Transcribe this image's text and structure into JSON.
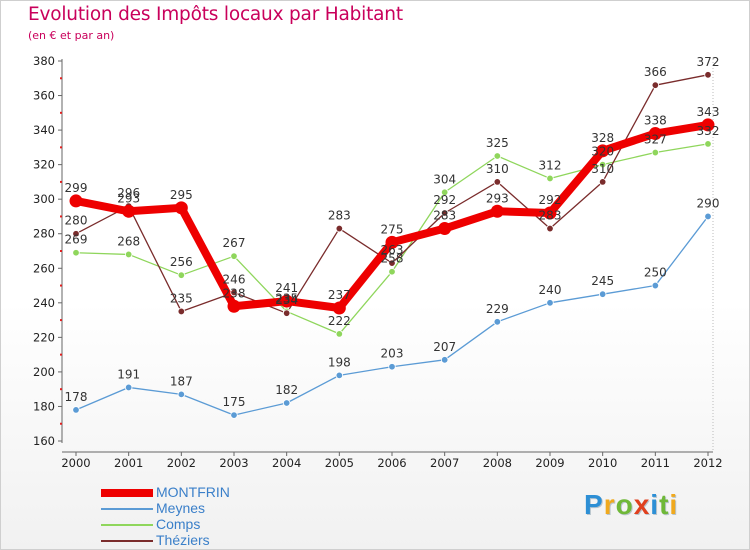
{
  "header": {
    "title": "Evolution des Impôts locaux par Habitant",
    "subtitle": "(en € et par an)"
  },
  "logo": {
    "letters": [
      "P",
      "r",
      "o",
      "x",
      "i",
      "t",
      "i"
    ],
    "colors": [
      "#2d8fd5",
      "#f0a91e",
      "#6fb838",
      "#e0401e",
      "#2d8fd5",
      "#6fb838",
      "#f0a91e"
    ]
  },
  "chart_data": {
    "type": "line",
    "title": "Evolution des Impôts locaux par Habitant",
    "ylabel": "(en € et par an)",
    "xlabel": "",
    "x": [
      "2000",
      "2001",
      "2002",
      "2003",
      "2004",
      "2005",
      "2006",
      "2007",
      "2008",
      "2009",
      "2010",
      "2011",
      "2012"
    ],
    "ylim": [
      160,
      380
    ],
    "yticks": [
      160,
      180,
      200,
      220,
      240,
      260,
      280,
      300,
      320,
      340,
      360,
      380
    ],
    "grid": false,
    "legend_position": "bottom-left",
    "series": [
      {
        "name": "MONTFRIN",
        "color": "#ee0000",
        "emphasis": true,
        "values": [
          299,
          293,
          295,
          238,
          241,
          237,
          275,
          283,
          293,
          292,
          328,
          338,
          343
        ],
        "labels": [
          "299",
          "293",
          "295",
          "238",
          "241",
          "237",
          "275",
          "283",
          "293",
          "292",
          "328",
          "338",
          "343"
        ]
      },
      {
        "name": "Meynes",
        "color": "#5b9bd5",
        "emphasis": false,
        "values": [
          178,
          191,
          187,
          175,
          182,
          198,
          203,
          207,
          229,
          240,
          245,
          250,
          290
        ],
        "labels": [
          "178",
          "191",
          "187",
          "175",
          "182",
          "198",
          "203",
          "207",
          "229",
          "240",
          "245",
          "250",
          "290"
        ]
      },
      {
        "name": "Comps",
        "color": "#8fd65c",
        "emphasis": false,
        "values": [
          269,
          268,
          256,
          267,
          235,
          222,
          258,
          304,
          325,
          312,
          320,
          327,
          332
        ],
        "labels": [
          "269",
          "268",
          "256",
          "267",
          "235",
          "222",
          "258",
          "304",
          "325",
          "312",
          "320",
          "327",
          "332"
        ]
      },
      {
        "name": "Théziers",
        "color": "#7a2c2c",
        "emphasis": false,
        "values": [
          280,
          296,
          235,
          246,
          234,
          283,
          263,
          292,
          310,
          283,
          310,
          366,
          372
        ],
        "labels": [
          "280",
          "296",
          "235",
          "246",
          "234",
          "283",
          "263",
          "292",
          "310",
          "283",
          "310",
          "366",
          "372"
        ]
      }
    ]
  }
}
